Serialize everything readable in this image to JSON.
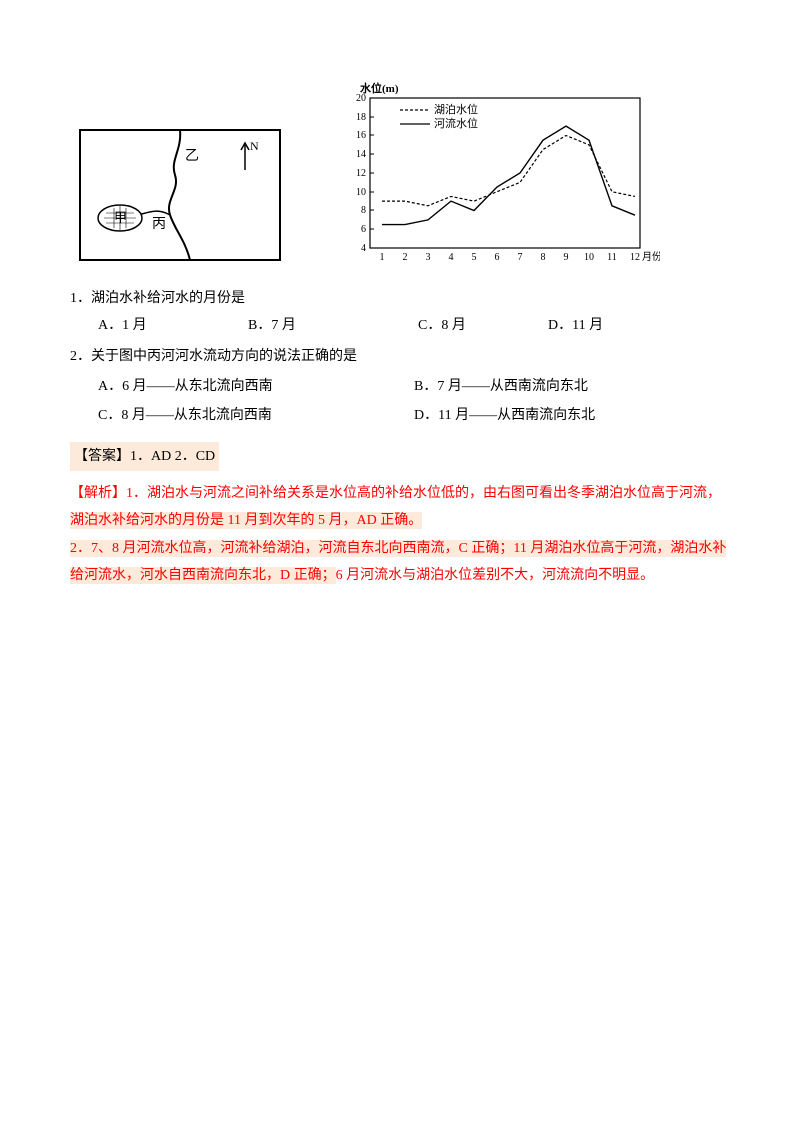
{
  "map": {
    "labels": {
      "zhi": "乙",
      "north": "N",
      "jia": "甲",
      "bing": "丙"
    },
    "stroke": "#000000",
    "lake_fill": "#ffffff",
    "border": "#000000"
  },
  "chart": {
    "type": "line",
    "ylabel": "水位(m)",
    "xlabel": "月份",
    "legend_lake": "湖泊水位",
    "legend_river": "河流水位",
    "ylim": [
      4,
      20
    ],
    "ytick_step": 2,
    "xticks": [
      1,
      2,
      3,
      4,
      5,
      6,
      7,
      8,
      9,
      10,
      11,
      12
    ],
    "lake_color": "#000000",
    "lake_dash": "3,2",
    "river_color": "#000000",
    "river_dash": "none",
    "line_width": 1.2,
    "background_color": "#ffffff",
    "border_color": "#000000",
    "lake_values": [
      9,
      9,
      8.5,
      9.5,
      9,
      10,
      11,
      14.5,
      16,
      15,
      10,
      9.5
    ],
    "river_values": [
      6.5,
      6.5,
      7,
      9,
      8,
      10.5,
      12,
      15.5,
      17,
      15.5,
      8.5,
      7.5
    ]
  },
  "q1": {
    "stem": "1．湖泊水补给河水的月份是",
    "optA": "A．1 月",
    "optB": "B．7 月",
    "optC": "C．8 月",
    "optD": "D．11 月"
  },
  "q2": {
    "stem": "2．关于图中丙河河水流动方向的说法正确的是",
    "optA": "A．6 月——从东北流向西南",
    "optB": "B．7 月——从西南流向东北",
    "optC": "C．8 月——从东北流向西南",
    "optD": "D．11 月——从西南流向东北"
  },
  "answer": "【答案】1．AD  2．CD",
  "analysis": {
    "line1": "【解析】1．湖泊水与河流之间补给关系是水位高的补给水位低的，由右图可看出冬季湖泊水位高于河流，",
    "line2": "湖泊水补给河水的月份是 11 月到次年的 5 月，AD 正确。",
    "line3a": "2．7、8 月河流水位高，河流补给湖泊，河流自东北向西南流，C 正确；11 月湖泊水位高于河流，湖泊水补",
    "line3b": "给河流水，河水自西南流向东北，D 正确；",
    "line3c": "6 月河流水与湖泊水位差别不大，河流流向不明显。"
  },
  "colors": {
    "highlight_bg": "#fdeada",
    "analysis_text": "#ff0000",
    "body_text": "#000000"
  }
}
